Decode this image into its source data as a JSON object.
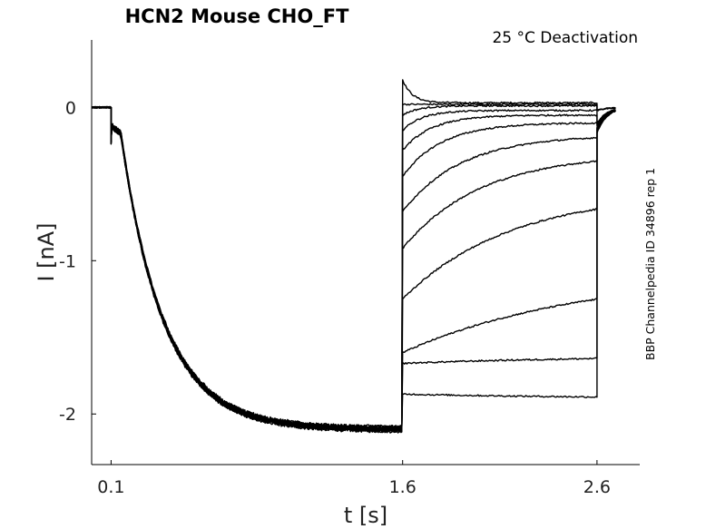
{
  "chart_data": {
    "type": "line",
    "title": "HCN2  Mouse  CHO_FT",
    "annotation": "25 °C  Deactivation",
    "side_annotation": "BBP Channelpedia ID 34896 rep 1",
    "xlabel": "t [s]",
    "ylabel": "I [nA]",
    "xlim": [
      0.0,
      2.82
    ],
    "ylim": [
      -2.33,
      0.44
    ],
    "x_ticks": [
      0.1,
      1.6,
      2.6
    ],
    "x_tick_labels": [
      "0.1",
      "1.6",
      "2.6"
    ],
    "y_ticks": [
      0,
      -1,
      -2
    ],
    "y_tick_labels": [
      "0",
      "-1",
      "-2"
    ],
    "grid": false,
    "activation_phase": {
      "description_none": "",
      "t_start": 0.0,
      "t_step": 0.1,
      "t_end": 1.6,
      "holding_current": 0.0,
      "capacitive_transient": -0.22,
      "initial_after_step": -0.12,
      "steady_state": -2.1,
      "delay": 0.05,
      "tau": 0.22,
      "noise_amplitude": 0.012
    },
    "deactivation_phase": {
      "t_start": 1.6,
      "t_end": 2.6,
      "tail_t_end": 2.7,
      "sweeps": [
        {
          "initial": 0.18,
          "final": 0.03,
          "tau": 0.05
        },
        {
          "initial": 0.02,
          "final": 0.02,
          "tau": 0.05
        },
        {
          "initial": -0.05,
          "final": 0.01,
          "tau": 0.08
        },
        {
          "initial": -0.15,
          "final": -0.02,
          "tau": 0.1
        },
        {
          "initial": -0.28,
          "final": -0.05,
          "tau": 0.15
        },
        {
          "initial": -0.45,
          "final": -0.1,
          "tau": 0.2
        },
        {
          "initial": -0.68,
          "final": -0.18,
          "tau": 0.3
        },
        {
          "initial": -0.92,
          "final": -0.3,
          "tau": 0.4
        },
        {
          "initial": -1.25,
          "final": -0.55,
          "tau": 0.55
        },
        {
          "initial": -1.6,
          "final": -1.08,
          "tau": 0.9
        },
        {
          "initial": -1.67,
          "final": -1.62,
          "tau": 1.0
        },
        {
          "initial": -1.87,
          "final": -1.9,
          "tau": 1.0
        }
      ]
    }
  }
}
